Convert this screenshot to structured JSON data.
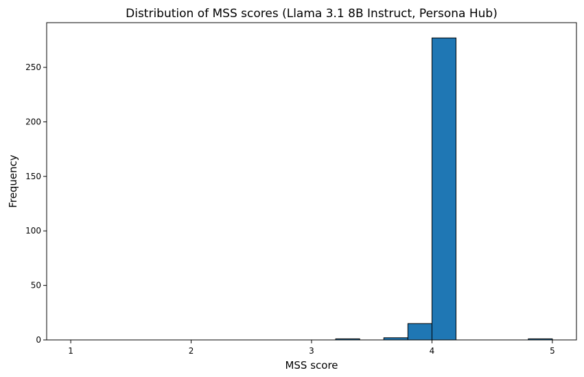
{
  "chart_data": {
    "type": "bar",
    "title": "Distribution of MSS scores (Llama 3.1 8B Instruct, Persona Hub)",
    "xlabel": "MSS score",
    "ylabel": "Frequency",
    "xlim": [
      0.8,
      5.2
    ],
    "ylim": [
      0,
      291
    ],
    "xticks": [
      1,
      2,
      3,
      4,
      5
    ],
    "yticks": [
      0,
      50,
      100,
      150,
      200,
      250
    ],
    "bin_edges": [
      1.0,
      1.2,
      1.4,
      1.6,
      1.8,
      2.0,
      2.2,
      2.4,
      2.6,
      2.8,
      3.0,
      3.2,
      3.4,
      3.6,
      3.8,
      4.0,
      4.2,
      4.4,
      4.6,
      4.8,
      5.0
    ],
    "values": [
      0,
      0,
      0,
      0,
      0,
      0,
      0,
      0,
      0,
      0,
      0,
      1,
      0,
      2,
      15,
      277,
      0,
      0,
      0,
      1
    ],
    "bar_color": "#1f77b4",
    "edge_color": "#000000",
    "grid": false,
    "legend": "none"
  }
}
